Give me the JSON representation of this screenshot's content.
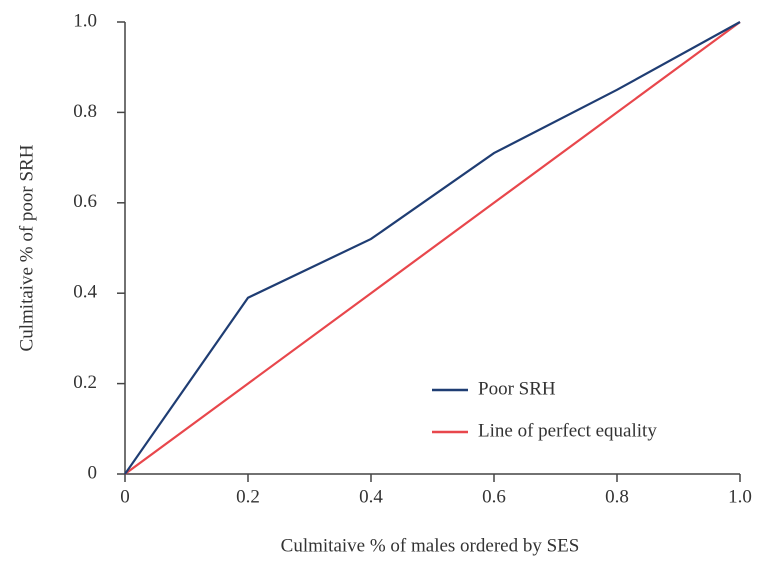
{
  "chart_data": {
    "type": "line",
    "xlabel": "Culmitaive % of males ordered by SES",
    "ylabel": "Culmitaive % of poor SRH",
    "x": [
      0,
      0.2,
      0.4,
      0.6,
      0.8,
      1
    ],
    "series": [
      {
        "name": "Poor SRH",
        "color": "#1f3d73",
        "values": [
          0,
          0.39,
          0.52,
          0.71,
          0.85,
          1
        ]
      },
      {
        "name": "Line of perfect equality",
        "color": "#e8474c",
        "values": [
          0,
          0.2,
          0.4,
          0.6,
          0.8,
          1
        ]
      }
    ],
    "xlim": [
      0,
      1
    ],
    "xticks": [
      0,
      0.2,
      0.4,
      0.6,
      0.8,
      {
        "value": 1,
        "label": "1.0"
      }
    ],
    "ylim": [
      0,
      1
    ],
    "yticks": [
      0,
      0.2,
      0.4,
      0.6,
      0.8,
      {
        "value": 1,
        "label": "1.0"
      }
    ],
    "grid": false,
    "legend": "lower right"
  }
}
